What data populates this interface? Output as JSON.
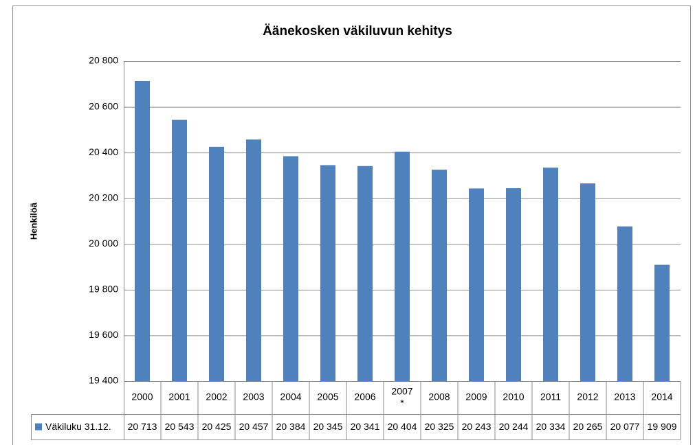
{
  "chart_data": {
    "type": "bar",
    "title": "Äänekosken väkiluvun kehitys",
    "y_label": "Henkilöä",
    "categories": [
      "2000",
      "2001",
      "2002",
      "2003",
      "2004",
      "2005",
      "2006",
      "2007\n*",
      "2008",
      "2009",
      "2010",
      "2011",
      "2012",
      "2013",
      "2014"
    ],
    "series": [
      {
        "name": "Väkiluku 31.12.",
        "color": "#4f81bd",
        "values": [
          20713,
          20543,
          20425,
          20457,
          20384,
          20345,
          20341,
          20404,
          20325,
          20243,
          20244,
          20334,
          20265,
          20077,
          19909
        ],
        "value_labels": [
          "20 713",
          "20 543",
          "20 425",
          "20 457",
          "20 384",
          "20 345",
          "20 341",
          "20 404",
          "20 325",
          "20 243",
          "20 244",
          "20 334",
          "20 265",
          "20 077",
          "19 909"
        ]
      }
    ],
    "ylim": [
      19400,
      20800
    ],
    "yticks": [
      {
        "value": 19400,
        "label": "19 400"
      },
      {
        "value": 19600,
        "label": "19 600"
      },
      {
        "value": 19800,
        "label": "19 800"
      },
      {
        "value": 20000,
        "label": "20 000"
      },
      {
        "value": 20200,
        "label": "20 200"
      },
      {
        "value": 20400,
        "label": "20 400"
      },
      {
        "value": 20600,
        "label": "20 600"
      },
      {
        "value": 20800,
        "label": "20 800"
      }
    ],
    "grid": true
  }
}
